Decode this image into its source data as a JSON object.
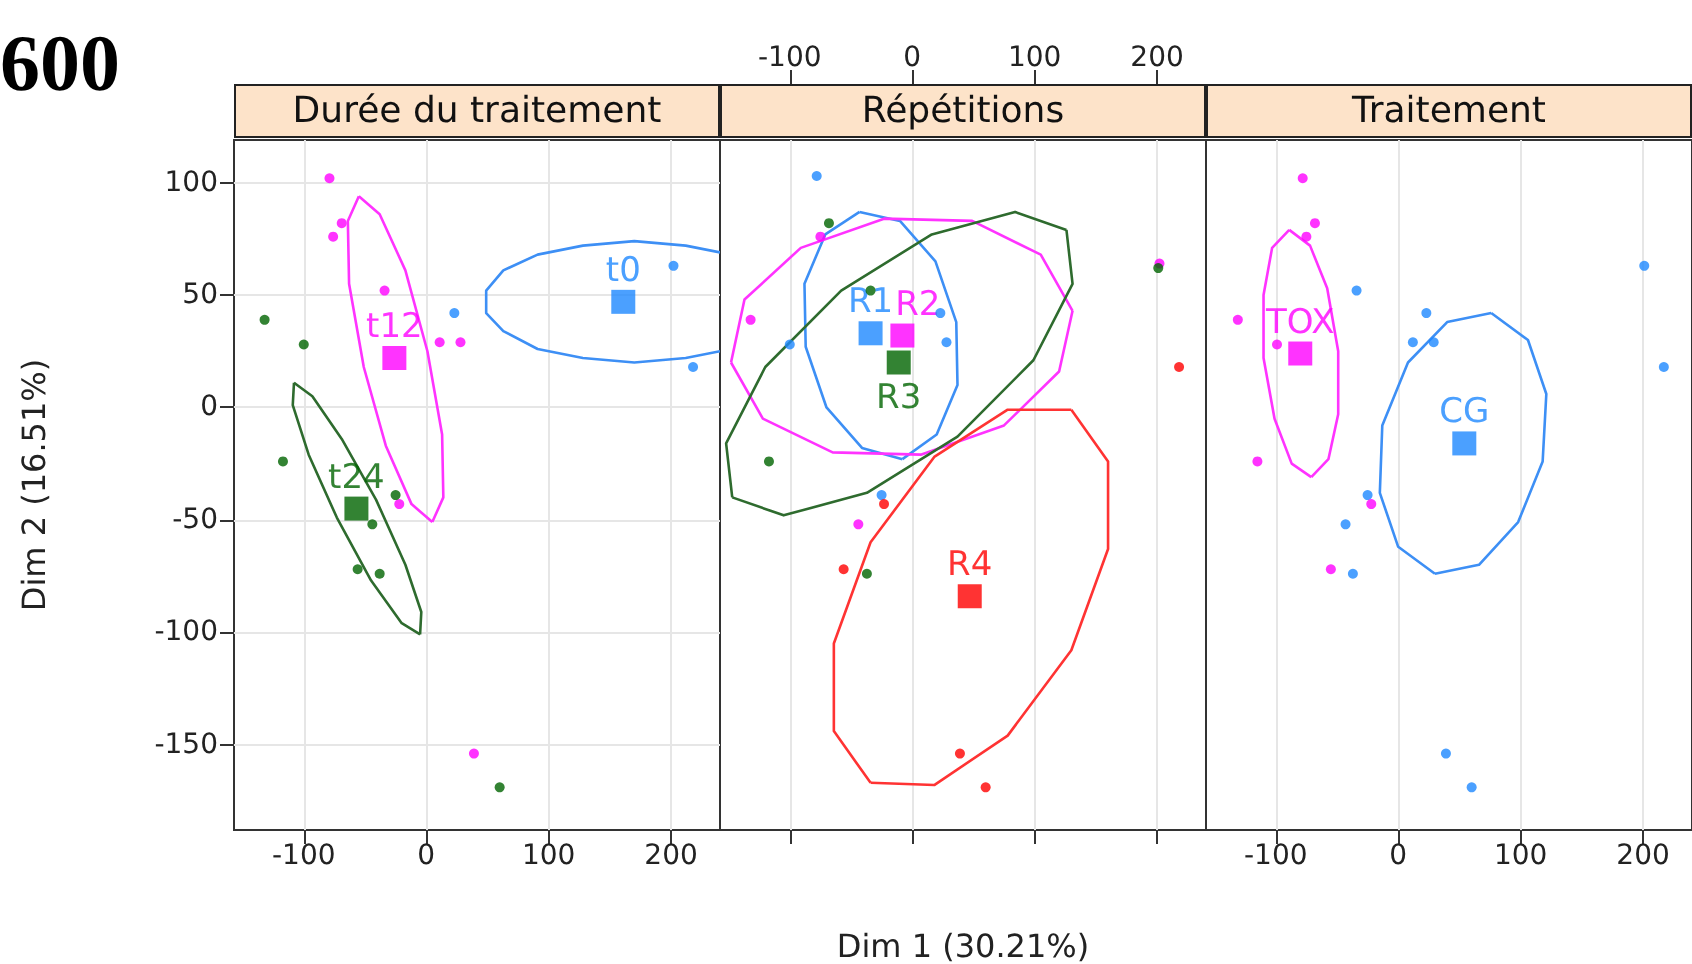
{
  "chart_data": [
    {
      "type": "scatter",
      "title": "Durée du traitement",
      "ylabel": "Dim 2 (16.51%)",
      "annotations": [
        "600"
      ],
      "xlim": [
        -157,
        240
      ],
      "ylim": [
        -188,
        119
      ],
      "xticks": [
        -100,
        0,
        100,
        200
      ],
      "yticks": [
        -150,
        -100,
        -50,
        0,
        50,
        100
      ],
      "grid": true,
      "legend": false,
      "series": [
        {
          "marker": "circle",
          "color": "#ff00ff",
          "x": [
            -79,
            -69,
            -76,
            -34,
            11,
            28,
            -22,
            39
          ],
          "values": [
            102,
            82,
            76,
            52,
            29,
            29,
            -43,
            -154
          ]
        },
        {
          "marker": "circle",
          "color": "#1e88ff",
          "x": [
            23,
            202,
            218
          ],
          "values": [
            42,
            63,
            18
          ]
        },
        {
          "marker": "circle",
          "color": "#006400",
          "x": [
            -132,
            -100,
            -117,
            -25,
            -44,
            -56,
            -38,
            60
          ],
          "values": [
            39,
            28,
            -24,
            -39,
            -52,
            -72,
            -74,
            -169
          ]
        },
        {
          "type": "line",
          "marker": "none",
          "color": "#3d8ff5",
          "x": [
            240,
            212,
            170,
            128,
            91,
            63,
            49,
            49,
            63,
            91,
            128,
            170,
            212,
            240
          ],
          "values": [
            69,
            72,
            74,
            72,
            68,
            61,
            52,
            42,
            34,
            26,
            22,
            20,
            22,
            25
          ]
        },
        {
          "type": "line",
          "marker": "none",
          "color": "#ff33ff",
          "x": [
            -55,
            -38,
            -17,
            1,
            13,
            14,
            5
          ],
          "values": [
            94,
            86,
            61,
            25,
            -12,
            -40,
            -51
          ]
        },
        {
          "type": "line",
          "marker": "none",
          "color": "#ff33ff",
          "x": [
            5,
            -12,
            -33,
            -51,
            -63,
            -64,
            -55
          ],
          "values": [
            -51,
            -43,
            -17,
            18,
            55,
            83,
            94
          ]
        },
        {
          "type": "line",
          "marker": "none",
          "color": "#2e6b2e",
          "x": [
            -108,
            -93,
            -69,
            -41,
            -17,
            -4,
            -5
          ],
          "values": [
            11,
            5,
            -14,
            -41,
            -70,
            -91,
            -101
          ]
        },
        {
          "type": "line",
          "marker": "none",
          "color": "#2e6b2e",
          "x": [
            -5,
            -20,
            -45,
            -73,
            -96,
            -109,
            -108
          ],
          "values": [
            -101,
            -96,
            -77,
            -49,
            -21,
            1,
            11
          ]
        },
        {
          "marker": "square",
          "name": "t0",
          "color": "#1e88ff",
          "x": [
            161
          ],
          "values": [
            47
          ]
        },
        {
          "marker": "square",
          "name": "t12",
          "color": "#ff00ff",
          "x": [
            -26
          ],
          "values": [
            22
          ]
        },
        {
          "marker": "square",
          "name": "t24",
          "color": "#006400",
          "x": [
            -57
          ],
          "values": [
            -45
          ]
        }
      ]
    },
    {
      "type": "scatter",
      "title": "Répétitions",
      "xlabel": "Dim 1 (30.21%)",
      "tick_labels": "x",
      "xlim": [
        -157,
        240
      ],
      "ylim": [
        -188,
        119
      ],
      "xticks": [
        -100,
        0,
        100,
        200
      ],
      "grid": true,
      "legend": false,
      "series": [
        {
          "marker": "circle",
          "color": "#1e88ff",
          "x": [
            -78,
            -100,
            23,
            28,
            -25
          ],
          "values": [
            103,
            28,
            42,
            29,
            -39
          ]
        },
        {
          "marker": "circle",
          "color": "#ff00ff",
          "x": [
            -75,
            -132,
            -44,
            202
          ],
          "values": [
            76,
            39,
            -52,
            64
          ]
        },
        {
          "marker": "circle",
          "color": "#006400",
          "x": [
            -68,
            -34,
            -117,
            -37,
            201
          ],
          "values": [
            82,
            52,
            -24,
            -74,
            62
          ]
        },
        {
          "marker": "circle",
          "color": "#ff0000",
          "x": [
            -23,
            -56,
            39,
            60,
            218
          ],
          "values": [
            -43,
            -72,
            -154,
            -169,
            18
          ]
        },
        {
          "type": "line",
          "marker": "none",
          "color": "#3d8ff5",
          "x": [
            -43,
            -10,
            19,
            36,
            37,
            20,
            -8
          ],
          "values": [
            87,
            83,
            65,
            38,
            10,
            -12,
            -23
          ]
        },
        {
          "type": "line",
          "marker": "none",
          "color": "#3d8ff5",
          "x": [
            -8,
            -41,
            -70,
            -87,
            -88,
            -71,
            -43
          ],
          "values": [
            -23,
            -18,
            0,
            27,
            55,
            77,
            87
          ]
        },
        {
          "type": "line",
          "marker": "none",
          "color": "#ff33ff",
          "x": [
            131,
            105,
            49,
            -23,
            -91,
            -137,
            -148
          ],
          "values": [
            43,
            68,
            83,
            84,
            71,
            48,
            20
          ]
        },
        {
          "type": "line",
          "marker": "none",
          "color": "#ff33ff",
          "x": [
            -148,
            -122,
            -65,
            7,
            75,
            120,
            131
          ],
          "values": [
            20,
            -5,
            -20,
            -21,
            -8,
            16,
            43
          ]
        },
        {
          "type": "line",
          "marker": "none",
          "color": "#2e6b2e",
          "x": [
            126,
            84,
            16,
            -58,
            -120,
            -152,
            -147
          ],
          "values": [
            79,
            87,
            77,
            52,
            18,
            -16,
            -40
          ]
        },
        {
          "type": "line",
          "marker": "none",
          "color": "#2e6b2e",
          "x": [
            -147,
            -105,
            -37,
            37,
            99,
            131,
            126
          ],
          "values": [
            -40,
            -48,
            -38,
            -13,
            21,
            55,
            79
          ]
        },
        {
          "type": "line",
          "marker": "none",
          "color": "#ff3333",
          "x": [
            130,
            160,
            160,
            130,
            78,
            18,
            -34
          ],
          "values": [
            -1,
            -24,
            -63,
            -108,
            -146,
            -168,
            -167
          ]
        },
        {
          "type": "line",
          "marker": "none",
          "color": "#ff3333",
          "x": [
            -34,
            -64,
            -64,
            -34,
            18,
            78,
            130
          ],
          "values": [
            -167,
            -144,
            -105,
            -60,
            -22,
            -1,
            -1
          ]
        },
        {
          "marker": "square",
          "name": "R1",
          "color": "#1e88ff",
          "x": [
            -34
          ],
          "values": [
            33
          ]
        },
        {
          "marker": "square",
          "name": "R2",
          "color": "#ff00ff",
          "x": [
            -8
          ],
          "values": [
            32
          ]
        },
        {
          "marker": "square",
          "name": "R3",
          "color": "#006400",
          "x": [
            -11
          ],
          "values": [
            20
          ]
        },
        {
          "marker": "square",
          "name": "R4",
          "color": "#ff0000",
          "x": [
            47
          ],
          "values": [
            -84
          ]
        }
      ]
    },
    {
      "type": "scatter",
      "title": "Traitement",
      "tick_labels": "x",
      "xlim": [
        -157,
        240
      ],
      "ylim": [
        -188,
        119
      ],
      "xticks": [
        -100,
        0,
        100,
        200
      ],
      "grid": true,
      "legend": false,
      "series": [
        {
          "marker": "circle",
          "color": "#1e88ff",
          "x": [
            -34,
            23,
            12,
            29,
            201,
            217,
            -25,
            -43,
            -37,
            39,
            60
          ],
          "values": [
            52,
            42,
            29,
            29,
            63,
            18,
            -39,
            -52,
            -74,
            -154,
            -169
          ]
        },
        {
          "marker": "circle",
          "color": "#ff00ff",
          "x": [
            -78,
            -68,
            -75,
            -131,
            -99,
            -115,
            -22,
            -55
          ],
          "values": [
            102,
            82,
            76,
            39,
            28,
            -24,
            -43,
            -72
          ]
        },
        {
          "type": "line",
          "marker": "none",
          "color": "#ff33ff",
          "x": [
            -89,
            -72,
            -58,
            -49,
            -49,
            -57,
            -71
          ],
          "values": [
            79,
            72,
            53,
            25,
            -3,
            -23,
            -31
          ]
        },
        {
          "type": "line",
          "marker": "none",
          "color": "#ff33ff",
          "x": [
            -71,
            -87,
            -101,
            -110,
            -110,
            -103,
            -89
          ],
          "values": [
            -31,
            -25,
            -5,
            22,
            50,
            71,
            79
          ]
        },
        {
          "type": "line",
          "marker": "none",
          "color": "#3d8ff5",
          "x": [
            76,
            106,
            121,
            118,
            98,
            66,
            30
          ],
          "values": [
            42,
            30,
            6,
            -24,
            -51,
            -70,
            -74
          ]
        },
        {
          "type": "line",
          "marker": "none",
          "color": "#3d8ff5",
          "x": [
            30,
            0,
            -15,
            -13,
            8,
            40,
            76
          ],
          "values": [
            -74,
            -62,
            -38,
            -8,
            20,
            38,
            42
          ]
        },
        {
          "marker": "square",
          "name": "TOX",
          "color": "#ff00ff",
          "x": [
            -80
          ],
          "values": [
            24
          ]
        },
        {
          "marker": "square",
          "name": "CG",
          "color": "#1e88ff",
          "x": [
            54
          ],
          "values": [
            -16
          ]
        }
      ]
    }
  ]
}
